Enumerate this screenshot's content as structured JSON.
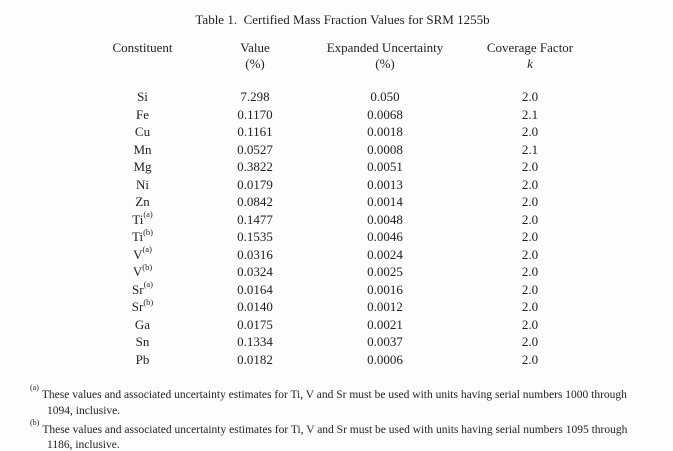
{
  "table": {
    "title": "Table 1.  Certified Mass Fraction Values for SRM 1255b",
    "headers": {
      "constituent": {
        "line1": "Constituent",
        "line2": ""
      },
      "value": {
        "line1": "Value",
        "line2": "(%)"
      },
      "uncertainty": {
        "line1": "Expanded Uncertainty",
        "line2": "(%)"
      },
      "coverage": {
        "line1": "Coverage Factor",
        "line2": "k"
      }
    },
    "rows": [
      {
        "constituent": "Si",
        "sup": "",
        "value": "7.298",
        "uncertainty": "0.050",
        "k": "2.0"
      },
      {
        "constituent": "Fe",
        "sup": "",
        "value": "0.1170",
        "uncertainty": "0.0068",
        "k": "2.1"
      },
      {
        "constituent": "Cu",
        "sup": "",
        "value": "0.1161",
        "uncertainty": "0.0018",
        "k": "2.0"
      },
      {
        "constituent": "Mn",
        "sup": "",
        "value": "0.0527",
        "uncertainty": "0.0008",
        "k": "2.1"
      },
      {
        "constituent": "Mg",
        "sup": "",
        "value": "0.3822",
        "uncertainty": "0.0051",
        "k": "2.0"
      },
      {
        "constituent": "Ni",
        "sup": "",
        "value": "0.0179",
        "uncertainty": "0.0013",
        "k": "2.0"
      },
      {
        "constituent": "Zn",
        "sup": "",
        "value": "0.0842",
        "uncertainty": "0.0014",
        "k": "2.0"
      },
      {
        "constituent": "Ti",
        "sup": "(a)",
        "value": "0.1477",
        "uncertainty": "0.0048",
        "k": "2.0"
      },
      {
        "constituent": "Ti",
        "sup": "(b)",
        "value": "0.1535",
        "uncertainty": "0.0046",
        "k": "2.0"
      },
      {
        "constituent": "V",
        "sup": "(a)",
        "value": "0.0316",
        "uncertainty": "0.0024",
        "k": "2.0"
      },
      {
        "constituent": "V",
        "sup": "(b)",
        "value": "0.0324",
        "uncertainty": "0.0025",
        "k": "2.0"
      },
      {
        "constituent": "Sr",
        "sup": "(a)",
        "value": "0.0164",
        "uncertainty": "0.0016",
        "k": "2.0"
      },
      {
        "constituent": "Sr",
        "sup": "(b)",
        "value": "0.0140",
        "uncertainty": "0.0012",
        "k": "2.0"
      },
      {
        "constituent": "Ga",
        "sup": "",
        "value": "0.0175",
        "uncertainty": "0.0021",
        "k": "2.0"
      },
      {
        "constituent": "Sn",
        "sup": "",
        "value": "0.1334",
        "uncertainty": "0.0037",
        "k": "2.0"
      },
      {
        "constituent": "Pb",
        "sup": "",
        "value": "0.0182",
        "uncertainty": "0.0006",
        "k": "2.0"
      }
    ]
  },
  "footnotes": [
    {
      "marker": "(a)",
      "line1": "These values and associated uncertainty estimates for Ti, V and Sr must be used with units having serial numbers 1000 through",
      "line2": "1094, inclusive."
    },
    {
      "marker": "(b)",
      "line1": "These values and associated uncertainty estimates for Ti, V and Sr must be used with units having serial numbers 1095 through",
      "line2": "1186, inclusive."
    }
  ]
}
